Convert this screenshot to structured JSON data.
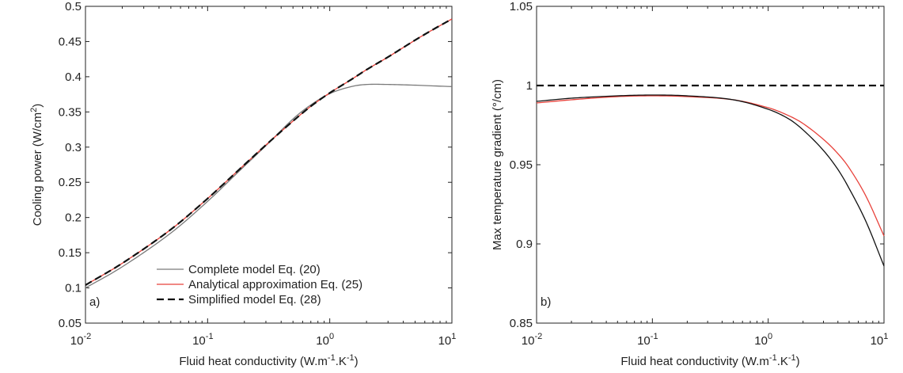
{
  "chart_data": [
    {
      "type": "line",
      "panel_label": "a)",
      "xlabel": {
        "base": "Fluid heat conductivity (W.m",
        "sup1": "-1",
        "mid": ".K",
        "sup2": "-1",
        "end": ")"
      },
      "ylabel": {
        "base": "Cooling power (W/cm",
        "sup": "2",
        "end": ")"
      },
      "xscale": "log",
      "xlim": [
        0.01,
        10
      ],
      "ylim": [
        0.05,
        0.5
      ],
      "x_ticks": [
        {
          "base": "10",
          "exp": "-2",
          "value": 0.01
        },
        {
          "base": "10",
          "exp": "-1",
          "value": 0.1
        },
        {
          "base": "10",
          "exp": "0",
          "value": 1
        },
        {
          "base": "10",
          "exp": "1",
          "value": 10
        }
      ],
      "y_ticks": [
        "0.05",
        "0.1",
        "0.15",
        "0.2",
        "0.25",
        "0.3",
        "0.35",
        "0.4",
        "0.45",
        "0.5"
      ],
      "grid": false,
      "legend": {
        "placement": "bottom-right",
        "entries": [
          "Complete model Eq. (20)",
          "Analytical approximation Eq. (25)",
          "Simplified model Eq. (28)"
        ]
      },
      "series": [
        {
          "name": "Complete model Eq. (20)",
          "color": "#7a7a7a",
          "style": "solid",
          "x": [
            0.01,
            0.02,
            0.05,
            0.1,
            0.2,
            0.3,
            0.5,
            0.7,
            1.0,
            1.5,
            2.0,
            3.0,
            5.0,
            7.0,
            10.0
          ],
          "y": [
            0.1,
            0.13,
            0.178,
            0.223,
            0.273,
            0.302,
            0.34,
            0.36,
            0.376,
            0.386,
            0.389,
            0.389,
            0.388,
            0.387,
            0.386
          ]
        },
        {
          "name": "Analytical approximation Eq. (25)",
          "color": "#e8413a",
          "style": "solid",
          "x": [
            0.01,
            0.02,
            0.05,
            0.1,
            0.2,
            0.3,
            0.5,
            0.7,
            1.0,
            1.5,
            2.0,
            3.0,
            5.0,
            7.0,
            10.0
          ],
          "y": [
            0.104,
            0.135,
            0.183,
            0.227,
            0.275,
            0.303,
            0.337,
            0.358,
            0.377,
            0.396,
            0.41,
            0.428,
            0.452,
            0.467,
            0.482
          ]
        },
        {
          "name": "Simplified model Eq. (28)",
          "color": "#111111",
          "style": "dashed",
          "x": [
            0.01,
            0.02,
            0.05,
            0.1,
            0.2,
            0.3,
            0.5,
            0.7,
            1.0,
            1.5,
            2.0,
            3.0,
            5.0,
            7.0,
            10.0
          ],
          "y": [
            0.104,
            0.135,
            0.183,
            0.227,
            0.275,
            0.303,
            0.337,
            0.358,
            0.377,
            0.396,
            0.41,
            0.428,
            0.452,
            0.467,
            0.482
          ]
        }
      ]
    },
    {
      "type": "line",
      "panel_label": "b)",
      "xlabel": {
        "base": "Fluid heat conductivity (W.m",
        "sup1": "-1",
        "mid": ".K",
        "sup2": "-1",
        "end": ")"
      },
      "ylabel": {
        "base": "Max temperature gradient (°/cm)",
        "sup": "",
        "end": ""
      },
      "xscale": "log",
      "xlim": [
        0.01,
        10
      ],
      "ylim": [
        0.85,
        1.05
      ],
      "x_ticks": [
        {
          "base": "10",
          "exp": "-2",
          "value": 0.01
        },
        {
          "base": "10",
          "exp": "-1",
          "value": 0.1
        },
        {
          "base": "10",
          "exp": "0",
          "value": 1
        },
        {
          "base": "10",
          "exp": "1",
          "value": 10
        }
      ],
      "y_ticks": [
        "0.85",
        "0.9",
        "0.95",
        "1",
        "1.05"
      ],
      "grid": false,
      "series": [
        {
          "color": "#111111",
          "style": "dashed",
          "x": [
            0.01,
            10.0
          ],
          "y": [
            1.0,
            1.0
          ]
        },
        {
          "color": "#e8413a",
          "style": "solid",
          "x": [
            0.01,
            0.02,
            0.05,
            0.1,
            0.2,
            0.5,
            1.0,
            1.5,
            2.0,
            3.0,
            4.0,
            5.0,
            7.0,
            10.0
          ],
          "y": [
            0.989,
            0.991,
            0.993,
            0.9935,
            0.993,
            0.991,
            0.986,
            0.981,
            0.976,
            0.966,
            0.957,
            0.948,
            0.93,
            0.905
          ]
        },
        {
          "color": "#111111",
          "style": "solid",
          "x": [
            0.01,
            0.02,
            0.05,
            0.1,
            0.2,
            0.5,
            1.0,
            1.5,
            2.0,
            3.0,
            4.0,
            5.0,
            7.0,
            10.0
          ],
          "y": [
            0.99,
            0.992,
            0.9935,
            0.994,
            0.9935,
            0.991,
            0.985,
            0.979,
            0.972,
            0.959,
            0.947,
            0.935,
            0.914,
            0.886
          ]
        }
      ]
    }
  ]
}
